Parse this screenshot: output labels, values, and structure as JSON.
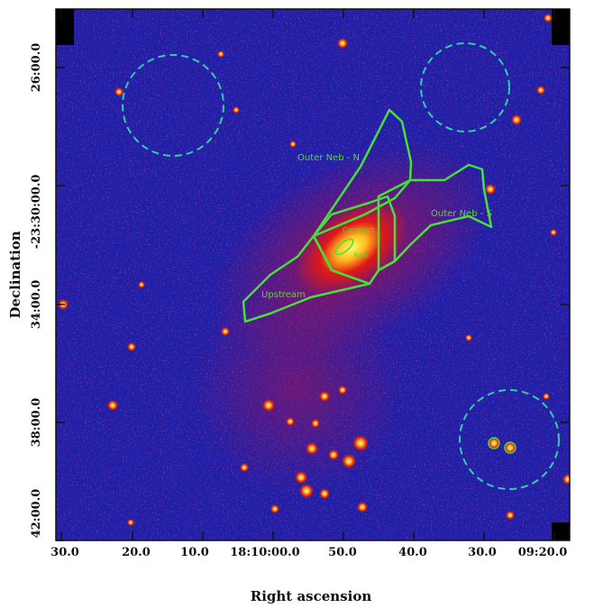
{
  "axes": {
    "x_title": "Right ascension",
    "y_title": "Declination",
    "x_ticks": [
      "30.0",
      "20.0",
      "10.0",
      "18:10:00.0",
      "50.0",
      "40.0",
      "30.0",
      "09:20.0"
    ],
    "y_ticks": [
      "26:00.0",
      "-23:30:00.0",
      "34:00.0",
      "38:00.0",
      "42:00.0"
    ]
  },
  "regions": {
    "outer_neb_n": "Outer Neb - N",
    "outer_neb_s": "Outer Neb - S",
    "upstream": "Upstream",
    "core_top": "Compact",
    "core_bottom": "Neb"
  },
  "colors": {
    "background": "#1f1fa8",
    "region_outline": "#45e03a",
    "background_circles": "#2fd0a8",
    "frame": "#111111"
  }
}
